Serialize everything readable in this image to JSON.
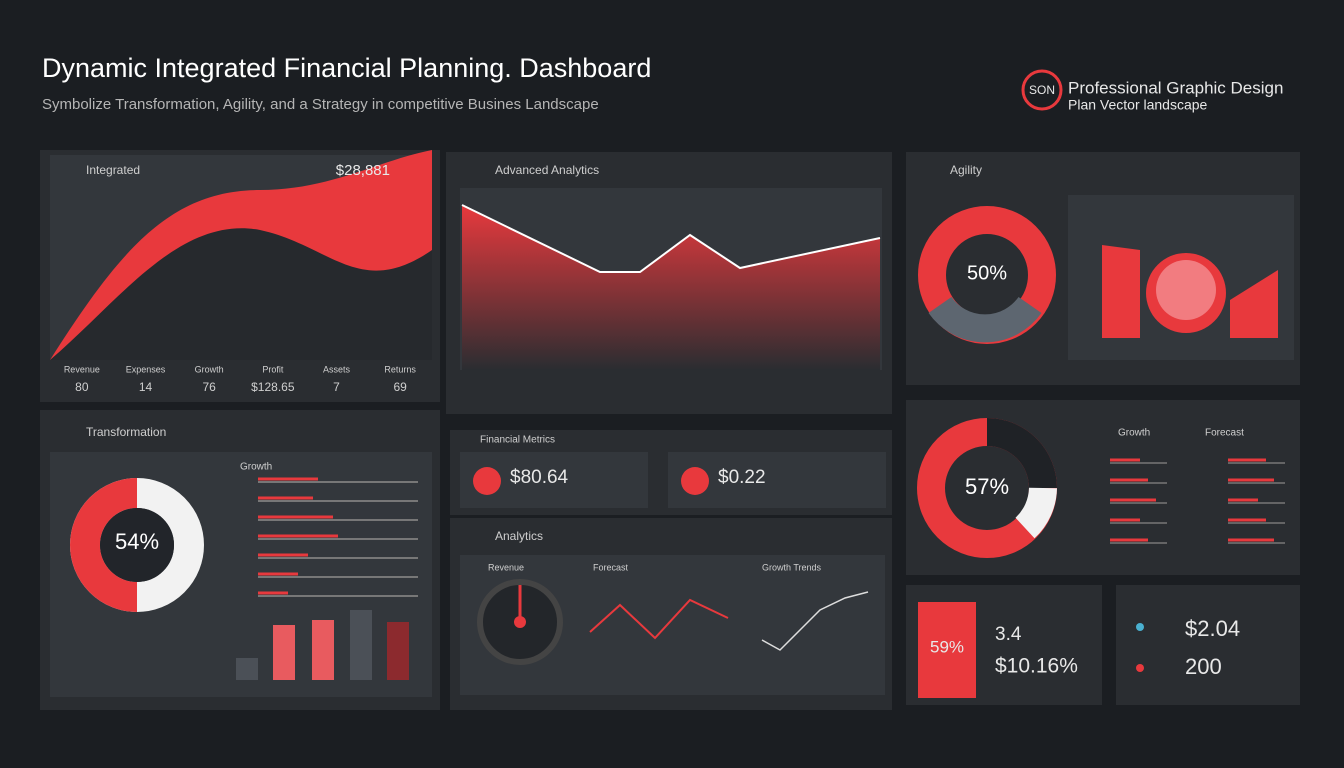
{
  "header": {
    "title": "Dynamic Integrated Financial Planning. Dashboard",
    "subtitle": "Symbolize Transformation, Agility, and a Strategy in competitive Busines Landscape"
  },
  "brand": {
    "logo": "SON",
    "line1": "Professional Graphic Design",
    "line2": "Plan Vector landscape"
  },
  "panels": [
    {
      "title": "Integrated",
      "value": "$28,881",
      "stats": [
        {
          "label": "Revenue",
          "value": "80"
        },
        {
          "label": "Expenses",
          "value": "14"
        },
        {
          "label": "Growth",
          "value": "76"
        },
        {
          "label": "Profit",
          "value": "$128.65"
        },
        {
          "label": "Assets",
          "value": "7"
        },
        {
          "label": "Returns",
          "value": "69"
        }
      ]
    },
    {
      "title": "Advanced Analytics"
    },
    {
      "title": "Agility",
      "donut": "50%"
    },
    {
      "title": "Transformation",
      "donut": "54%",
      "list_title": "Growth"
    },
    {
      "title": "Financial Metrics",
      "cards": [
        "$80.64",
        "$0.22"
      ]
    },
    {
      "title": "Analytics",
      "charts": [
        "Revenue",
        "Forecast",
        "Growth Trends"
      ]
    },
    {
      "donut": "57%",
      "columns": [
        "Growth",
        "Forecast"
      ]
    },
    {
      "badge": "59%",
      "values": [
        "3.4",
        "$10.16%"
      ]
    },
    {
      "values": [
        "$2.04",
        "200"
      ]
    }
  ]
}
